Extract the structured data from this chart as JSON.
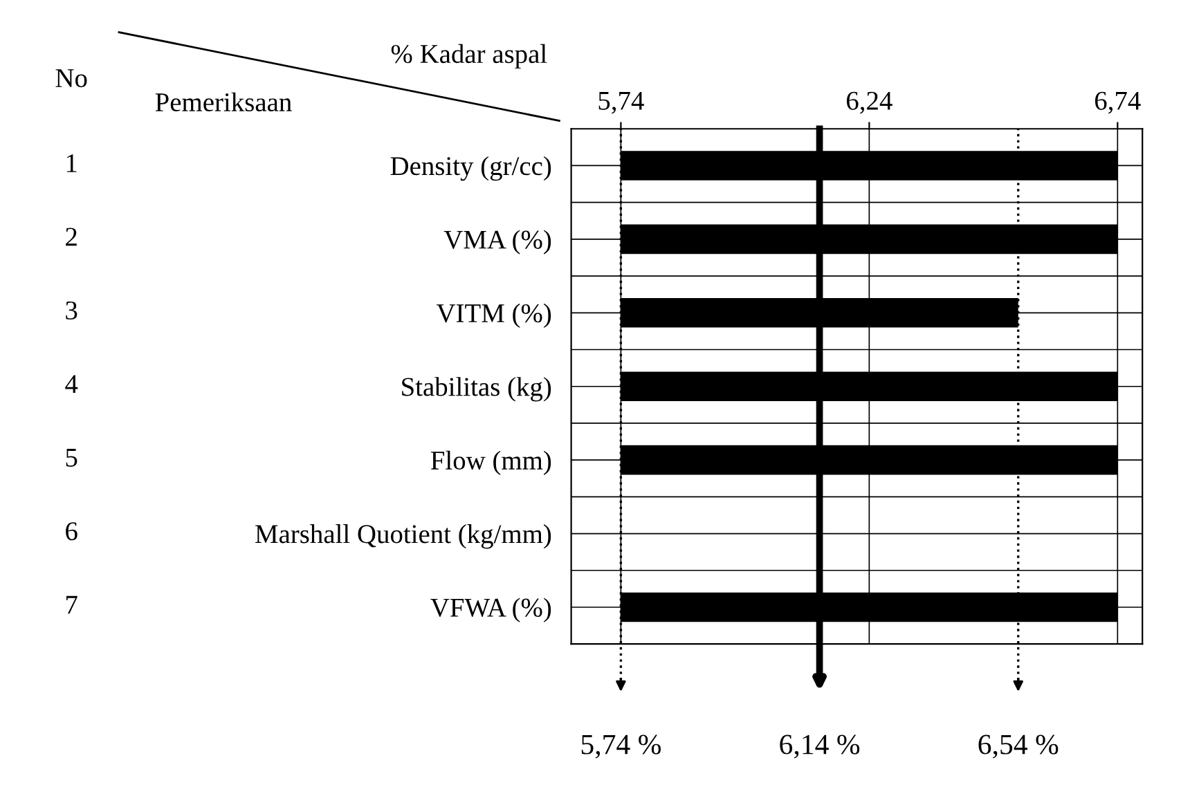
{
  "chart_data": {
    "type": "bar",
    "orientation": "horizontal",
    "categories": [
      "Density (gr/cc)",
      "VMA (%)",
      "VITM (%)",
      "Stabilitas (kg)",
      "Flow (mm)",
      "Marshall Quotient (kg/mm)",
      "VFWA (%)"
    ],
    "base": [
      5.74,
      5.74,
      5.74,
      5.74,
      5.74,
      null,
      5.74
    ],
    "values": [
      1.0,
      1.0,
      0.8,
      1.0,
      1.0,
      null,
      1.0
    ],
    "color": "#000000",
    "xlim": [
      5.64,
      6.79
    ],
    "xticks": [
      {
        "value": 5.74,
        "label": "5,74"
      },
      {
        "value": 6.24,
        "label": "6,24"
      },
      {
        "value": 6.74,
        "label": "6,74"
      }
    ],
    "grid": true,
    "ref_lines": [
      {
        "axis": "x",
        "value": 5.74,
        "label": "5,74 %",
        "color": "#000000",
        "line_style": "dotted"
      },
      {
        "axis": "x",
        "value": 6.14,
        "label": "6,14 %",
        "color": "#000000",
        "line_style": "solid"
      },
      {
        "axis": "x",
        "value": 6.54,
        "label": "6,54 %",
        "color": "#000000",
        "line_style": "dotted"
      }
    ],
    "annotations": [
      "No",
      "% Kadar aspal",
      "Pemeriksaan",
      "1",
      "2",
      "3",
      "4",
      "5",
      "6",
      "7"
    ]
  }
}
